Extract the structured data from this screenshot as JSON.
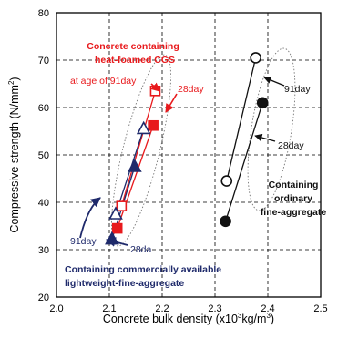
{
  "chart_data": {
    "type": "scatter",
    "xlabel": "Concrete bulk density (x10",
    "xlabel_sup": "3",
    "xlabel_tail": "kg/m",
    "xlabel_sup2": "3",
    "xlabel_close": ")",
    "ylabel": "Compressive strength (N/mm",
    "ylabel_sup": "2",
    "ylabel_close": ")",
    "xlim": [
      2.0,
      2.5
    ],
    "ylim": [
      20,
      80
    ],
    "x_ticks": [
      "2.0",
      "2.1",
      "2.2",
      "2.3",
      "2.4",
      "2.5"
    ],
    "y_ticks": [
      "20",
      "30",
      "40",
      "50",
      "60",
      "70",
      "80"
    ],
    "grid": "dashed",
    "series": [
      {
        "key": "cgs",
        "color": "#e8191c",
        "points": [
          {
            "x": 2.115,
            "y": 34.5,
            "age": "28day",
            "fill": "filled",
            "shape": "square"
          },
          {
            "x": 2.183,
            "y": 56.2,
            "age": "28day",
            "fill": "filled",
            "shape": "square"
          },
          {
            "x": 2.123,
            "y": 39.2,
            "age": "91day",
            "fill": "open",
            "shape": "square"
          },
          {
            "x": 2.187,
            "y": 63.5,
            "age": "91day",
            "fill": "open",
            "shape": "square"
          }
        ]
      },
      {
        "key": "lightweight",
        "color": "#1f2a6b",
        "points": [
          {
            "x": 2.105,
            "y": 32.2,
            "age": "28day",
            "fill": "filled",
            "shape": "triangle"
          },
          {
            "x": 2.148,
            "y": 47.5,
            "age": "28day",
            "fill": "filled",
            "shape": "triangle"
          },
          {
            "x": 2.112,
            "y": 37.5,
            "age": "91day",
            "fill": "open",
            "shape": "triangle"
          },
          {
            "x": 2.165,
            "y": 55.5,
            "age": "91day",
            "fill": "open",
            "shape": "triangle"
          }
        ]
      },
      {
        "key": "ordinary",
        "color": "#111111",
        "points": [
          {
            "x": 2.32,
            "y": 36.0,
            "age": "28day",
            "fill": "filled",
            "shape": "circle"
          },
          {
            "x": 2.39,
            "y": 61.0,
            "age": "28day",
            "fill": "filled",
            "shape": "circle"
          },
          {
            "x": 2.322,
            "y": 44.5,
            "age": "91day",
            "fill": "open",
            "shape": "circle"
          },
          {
            "x": 2.377,
            "y": 70.5,
            "age": "91day",
            "fill": "open",
            "shape": "circle"
          }
        ]
      }
    ],
    "annotations": {
      "cgs_title_1": "Concrete containing",
      "cgs_title_2": "heat-foamed CGS",
      "cgs_age91": "at age of 91day",
      "cgs_28": "28day",
      "lw_91": "91day",
      "lw_28": "28da",
      "lw_title_1": "Containing commercially available",
      "lw_title_2": "lightweight-fine-aggregate",
      "ord_91": "91day",
      "ord_28": "28day",
      "ord_title_1": "Containing",
      "ord_title_2": "ordinary",
      "ord_title_3": "fine-aggregate"
    }
  }
}
